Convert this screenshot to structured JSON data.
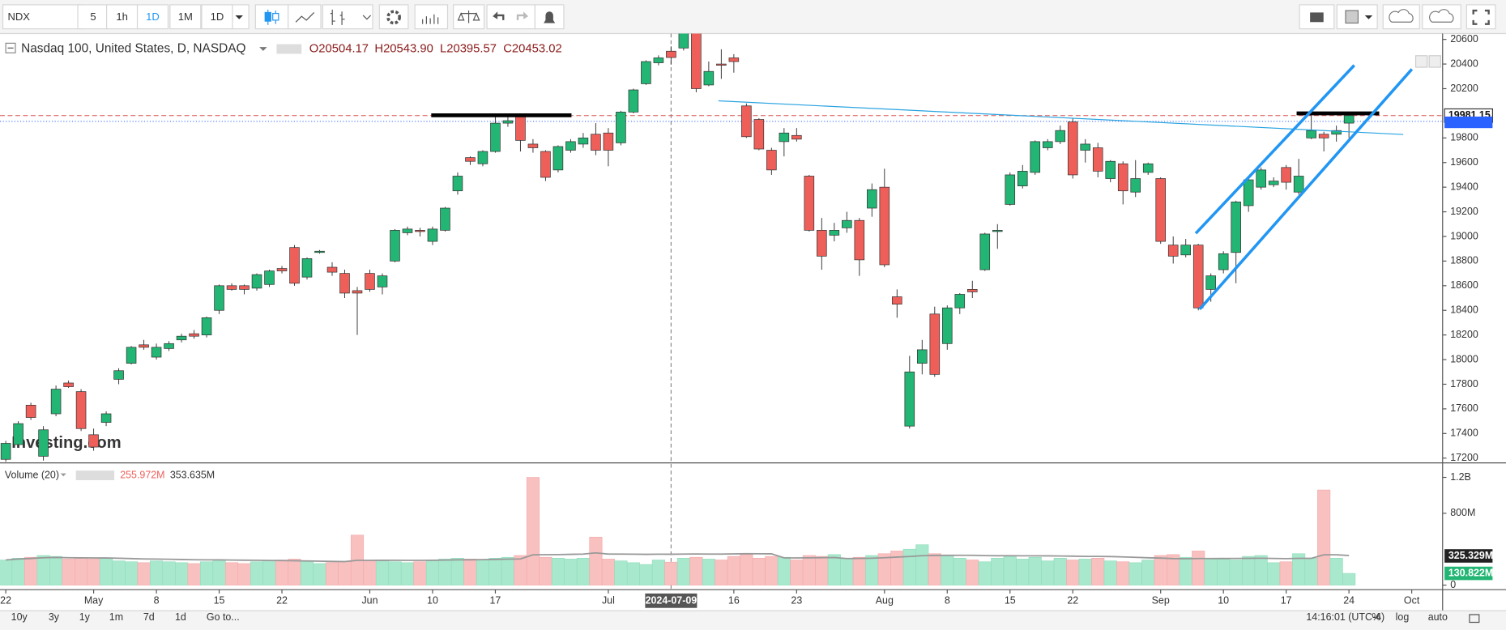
{
  "toolbar": {
    "symbol": "NDX",
    "intervals": [
      "5",
      "1h",
      "1D",
      "1M",
      "1D"
    ]
  },
  "bottom_bar": {
    "ranges": [
      "10y",
      "3y",
      "1y",
      "1m",
      "7d",
      "1d"
    ],
    "goto": "Go to...",
    "clock": "14:16:01 (UTC-4)",
    "options": [
      "%",
      "log",
      "auto"
    ]
  },
  "watermark": "Investing.com",
  "chart_data": {
    "type": "candlestick",
    "title": "Nasdaq 100, United States, D, NASDAQ",
    "ohlc_legend": [
      "O20504.17",
      "H20543.90",
      "L20395.57",
      "C20453.02"
    ],
    "crosshair": {
      "date_label": "2024-07-09"
    },
    "up_color": "#22b573",
    "down_color": "#ef5f5a",
    "up_volume_color": "#a8e8cd",
    "down_volume_color": "#f9c0c0",
    "x": [
      "2024-04-22",
      "2024-04-23",
      "2024-04-24",
      "2024-04-25",
      "2024-04-26",
      "2024-04-29",
      "2024-04-30",
      "2024-05-01",
      "2024-05-02",
      "2024-05-03",
      "2024-05-06",
      "2024-05-07",
      "2024-05-08",
      "2024-05-09",
      "2024-05-10",
      "2024-05-13",
      "2024-05-14",
      "2024-05-15",
      "2024-05-16",
      "2024-05-17",
      "2024-05-20",
      "2024-05-21",
      "2024-05-22",
      "2024-05-23",
      "2024-05-24",
      "2024-05-28",
      "2024-05-29",
      "2024-05-30",
      "2024-05-31",
      "2024-06-03",
      "2024-06-04",
      "2024-06-05",
      "2024-06-06",
      "2024-06-07",
      "2024-06-10",
      "2024-06-11",
      "2024-06-12",
      "2024-06-13",
      "2024-06-14",
      "2024-06-17",
      "2024-06-18",
      "2024-06-20",
      "2024-06-21",
      "2024-06-24",
      "2024-06-25",
      "2024-06-26",
      "2024-06-27",
      "2024-06-28",
      "2024-07-01",
      "2024-07-02",
      "2024-07-03",
      "2024-07-05",
      "2024-07-08",
      "2024-07-09",
      "2024-07-10",
      "2024-07-11",
      "2024-07-12",
      "2024-07-15",
      "2024-07-16",
      "2024-07-17",
      "2024-07-18",
      "2024-07-19",
      "2024-07-22",
      "2024-07-23",
      "2024-07-24",
      "2024-07-25",
      "2024-07-26",
      "2024-07-29",
      "2024-07-30",
      "2024-07-31",
      "2024-08-01",
      "2024-08-02",
      "2024-08-05",
      "2024-08-06",
      "2024-08-07",
      "2024-08-08",
      "2024-08-09",
      "2024-08-12",
      "2024-08-13",
      "2024-08-14",
      "2024-08-15",
      "2024-08-16",
      "2024-08-19",
      "2024-08-20",
      "2024-08-21",
      "2024-08-22",
      "2024-08-23",
      "2024-08-26",
      "2024-08-27",
      "2024-08-28",
      "2024-08-29",
      "2024-08-30",
      "2024-09-03",
      "2024-09-04",
      "2024-09-05",
      "2024-09-06",
      "2024-09-09",
      "2024-09-10",
      "2024-09-11",
      "2024-09-12",
      "2024-09-13",
      "2024-09-16",
      "2024-09-17",
      "2024-09-18",
      "2024-09-19",
      "2024-09-20",
      "2024-09-23",
      "2024-09-24"
    ],
    "open": [
      17190,
      17310,
      17630,
      17215,
      17560,
      17810,
      17740,
      17390,
      17490,
      17840,
      17970,
      18120,
      18020,
      18090,
      18160,
      18210,
      18200,
      18400,
      18600,
      18600,
      18580,
      18610,
      18740,
      18910,
      18670,
      18870,
      18750,
      18700,
      18560,
      18700,
      18590,
      18800,
      19030,
      19050,
      18960,
      19050,
      19370,
      19640,
      19590,
      19690,
      19920,
      19980,
      19750,
      19690,
      19540,
      19700,
      19750,
      19830,
      19840,
      19760,
      20010,
      20240,
      20410,
      20504.17,
      20530,
      20700,
      20230,
      20400,
      20450,
      20060,
      19950,
      19700,
      19770,
      19820,
      19490,
      19050,
      19010,
      19070,
      19130,
      19230,
      19400,
      18510,
      17460,
      17970,
      18370,
      18130,
      18420,
      18570,
      18730,
      19040,
      19260,
      19410,
      19520,
      19720,
      19770,
      19930,
      19700,
      19720,
      19470,
      19590,
      19360,
      19520,
      19470,
      18930,
      18850,
      18930,
      18570,
      18730,
      18870,
      19250,
      19400,
      19420,
      19560,
      19360,
      19800,
      19830,
      19830,
      19920
    ],
    "high": [
      17340,
      17500,
      17650,
      17460,
      17790,
      17830,
      17760,
      17440,
      17580,
      17930,
      18110,
      18160,
      18130,
      18150,
      18210,
      18240,
      18350,
      18610,
      18620,
      18610,
      18700,
      18730,
      18760,
      18930,
      18830,
      18890,
      18790,
      18730,
      18590,
      18730,
      18700,
      19060,
      19080,
      19070,
      19080,
      19240,
      19520,
      19650,
      19700,
      19980,
      19980,
      19990,
      19790,
      19700,
      19740,
      19790,
      19840,
      19920,
      19880,
      20020,
      20200,
      20430,
      20470,
      20543.9,
      20700,
      20720,
      20420,
      20520,
      20480,
      20080,
      19960,
      19720,
      19880,
      19880,
      19500,
      19150,
      19110,
      19200,
      19150,
      19430,
      19550,
      18570,
      18030,
      18160,
      18430,
      18440,
      18540,
      18640,
      19030,
      19100,
      19520,
      19580,
      19780,
      19790,
      19900,
      19960,
      19790,
      19760,
      19620,
      19610,
      19620,
      19600,
      19480,
      19000,
      18980,
      18940,
      18700,
      18880,
      19290,
      19470,
      19560,
      19480,
      19580,
      19630,
      19990,
      19850,
      19900,
      19990
    ],
    "low": [
      17170,
      17290,
      17510,
      17180,
      17540,
      17770,
      17420,
      17260,
      17460,
      17800,
      17960,
      18080,
      18000,
      18070,
      18140,
      18170,
      18180,
      18370,
      18560,
      18530,
      18560,
      18590,
      18700,
      18600,
      18650,
      18860,
      18680,
      18500,
      18200,
      18550,
      18530,
      18790,
      19010,
      19000,
      18930,
      19040,
      19340,
      19580,
      19570,
      19680,
      19890,
      19690,
      19680,
      19450,
      19520,
      19680,
      19720,
      19660,
      19570,
      19740,
      20000,
      20230,
      20390,
      20395.57,
      20510,
      20170,
      20220,
      20280,
      20330,
      19800,
      19700,
      19500,
      19650,
      19770,
      19040,
      18730,
      18960,
      19030,
      18680,
      19160,
      18750,
      18340,
      17440,
      17880,
      17860,
      18080,
      18370,
      18500,
      18720,
      18900,
      19250,
      19390,
      19500,
      19700,
      19750,
      19470,
      19600,
      19480,
      19440,
      19260,
      19320,
      19500,
      18940,
      18780,
      18830,
      18400,
      18470,
      18700,
      18620,
      19200,
      19380,
      19400,
      19380,
      19340,
      19790,
      19690,
      19770,
      19800
    ],
    "close": [
      17320,
      17480,
      17530,
      17430,
      17760,
      17780,
      17440,
      17290,
      17560,
      17910,
      18100,
      18100,
      18100,
      18130,
      18190,
      18190,
      18340,
      18600,
      18570,
      18570,
      18690,
      18720,
      18720,
      18620,
      18820,
      18880,
      18710,
      18540,
      18540,
      18570,
      18680,
      19050,
      19060,
      19040,
      19060,
      19230,
      19490,
      19610,
      19690,
      19920,
      19940,
      19780,
      19720,
      19480,
      19730,
      19770,
      19800,
      19700,
      19700,
      20010,
      20190,
      20420,
      20450,
      20453.02,
      20680,
      20200,
      20340,
      20390,
      20420,
      19810,
      19710,
      19540,
      19840,
      19790,
      19050,
      18840,
      19050,
      19130,
      18810,
      19380,
      18770,
      18450,
      17900,
      18080,
      17880,
      18420,
      18530,
      18550,
      19020,
      19050,
      19500,
      19530,
      19770,
      19770,
      19860,
      19500,
      19750,
      19530,
      19610,
      19370,
      19470,
      19590,
      18960,
      18840,
      18930,
      18420,
      18680,
      18860,
      19280,
      19460,
      19540,
      19450,
      19440,
      19490,
      19860,
      19800,
      19860,
      19981.15
    ],
    "volume": [
      280,
      300,
      310,
      330,
      320,
      290,
      300,
      290,
      300,
      270,
      260,
      250,
      270,
      260,
      250,
      240,
      260,
      280,
      250,
      240,
      260,
      270,
      280,
      290,
      270,
      240,
      250,
      260,
      557,
      270,
      280,
      260,
      250,
      260,
      270,
      290,
      300,
      290,
      280,
      300,
      310,
      330,
      1200,
      310,
      300,
      290,
      300,
      535,
      290,
      270,
      250,
      230,
      280,
      255.972,
      300,
      310,
      290,
      280,
      320,
      340,
      300,
      320,
      310,
      280,
      330,
      320,
      340,
      300,
      310,
      330,
      350,
      380,
      400,
      450,
      350,
      330,
      300,
      280,
      260,
      300,
      320,
      290,
      310,
      270,
      300,
      280,
      290,
      300,
      270,
      260,
      250,
      280,
      330,
      340,
      310,
      380,
      300,
      290,
      280,
      320,
      330,
      250,
      260,
      350,
      300,
      1060,
      300,
      130.822
    ],
    "ylim": [
      17169,
      20647
    ],
    "yticks": [
      20600,
      20400,
      20200,
      19800,
      19600,
      19400,
      19200,
      19000,
      18800,
      18600,
      18400,
      18200,
      18000,
      17800,
      17600,
      17400,
      17200
    ],
    "last_price": 19981.15,
    "volume_ylim": [
      -40,
      1340
    ],
    "volume_ticks": [
      {
        "value": 1200,
        "label": "1.2B"
      },
      {
        "value": 800,
        "label": "800M"
      },
      {
        "value": 0,
        "label": "0"
      }
    ],
    "volume_legend": {
      "title": "Volume (20)",
      "values": [
        "255.972M",
        "353.635M"
      ]
    },
    "volume_ma": {
      "period": 20,
      "color": "#999999",
      "last": {
        "value": 325.329,
        "label": "325.329M"
      }
    },
    "last_volume": {
      "value": 130.822,
      "label": "130.822M"
    },
    "xticks": [
      {
        "value": "2024-04-22",
        "label": "22"
      },
      {
        "value": "2024-05-01",
        "label": "May"
      },
      {
        "value": "2024-05-08",
        "label": "8"
      },
      {
        "value": "2024-05-15",
        "label": "15"
      },
      {
        "value": "2024-05-22",
        "label": "22"
      },
      {
        "value": "2024-06-03",
        "label": "Jun"
      },
      {
        "value": "2024-06-10",
        "label": "10"
      },
      {
        "value": "2024-06-17",
        "label": "17"
      },
      {
        "value": "2024-07-01",
        "label": "Jul"
      },
      {
        "value": "2024-07-16",
        "label": "16"
      },
      {
        "value": "2024-07-23",
        "label": "23"
      },
      {
        "value": "2024-08-01",
        "label": "Aug"
      },
      {
        "value": "2024-08-08",
        "label": "8"
      },
      {
        "value": "2024-08-15",
        "label": "15"
      },
      {
        "value": "2024-08-22",
        "label": "22"
      },
      {
        "value": "2024-09-03",
        "label": "Sep"
      },
      {
        "value": "2024-09-10",
        "label": "10"
      },
      {
        "value": "2024-09-17",
        "label": "17"
      },
      {
        "value": "2024-09-24",
        "label": "24"
      },
      {
        "value": "2024-10-01",
        "label": "Oct"
      }
    ]
  }
}
